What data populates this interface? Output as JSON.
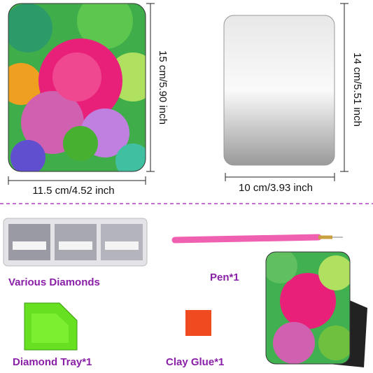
{
  "dimensions": {
    "mosaic_height": "15 cm/5.90 inch",
    "mosaic_width": "11.5 cm/4.52 inch",
    "mirror_height": "14 cm/5.51 inch",
    "mirror_width": "10 cm/3.93 inch"
  },
  "items": [
    "Various Diamonds",
    "Pen*1",
    "Diamond Tray*1",
    "Clay Glue*1"
  ]
}
